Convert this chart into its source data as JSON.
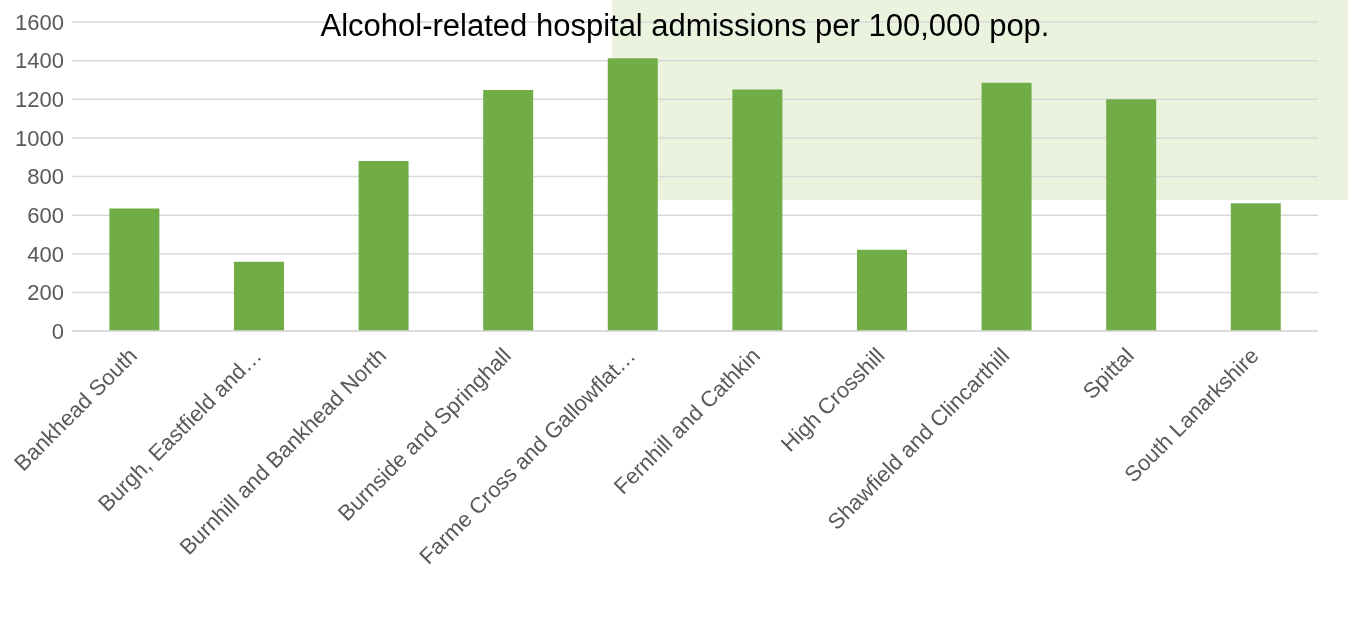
{
  "chart_data": {
    "type": "bar",
    "title": "Alcohol-related hospital admissions per 100,000 pop.",
    "categories": [
      "Bankhead South",
      "Burgh, Eastfield and…",
      "Burnhill and Bankhead North",
      "Burnside and Springhall",
      "Farme Cross and Gallowflat…",
      "Fernhill and Cathkin",
      "High Crosshill",
      "Shawfield and Clincarthill",
      "Spittal",
      "South Lanarkshire"
    ],
    "values": [
      634,
      359,
      880,
      1248,
      1412,
      1250,
      421,
      1285,
      1200,
      662
    ],
    "color": "#70ad47",
    "ylim": [
      0,
      1600
    ],
    "yticks": [
      0,
      200,
      400,
      600,
      800,
      1000,
      1200,
      1400,
      1600
    ],
    "grid": "y",
    "legend": false
  }
}
